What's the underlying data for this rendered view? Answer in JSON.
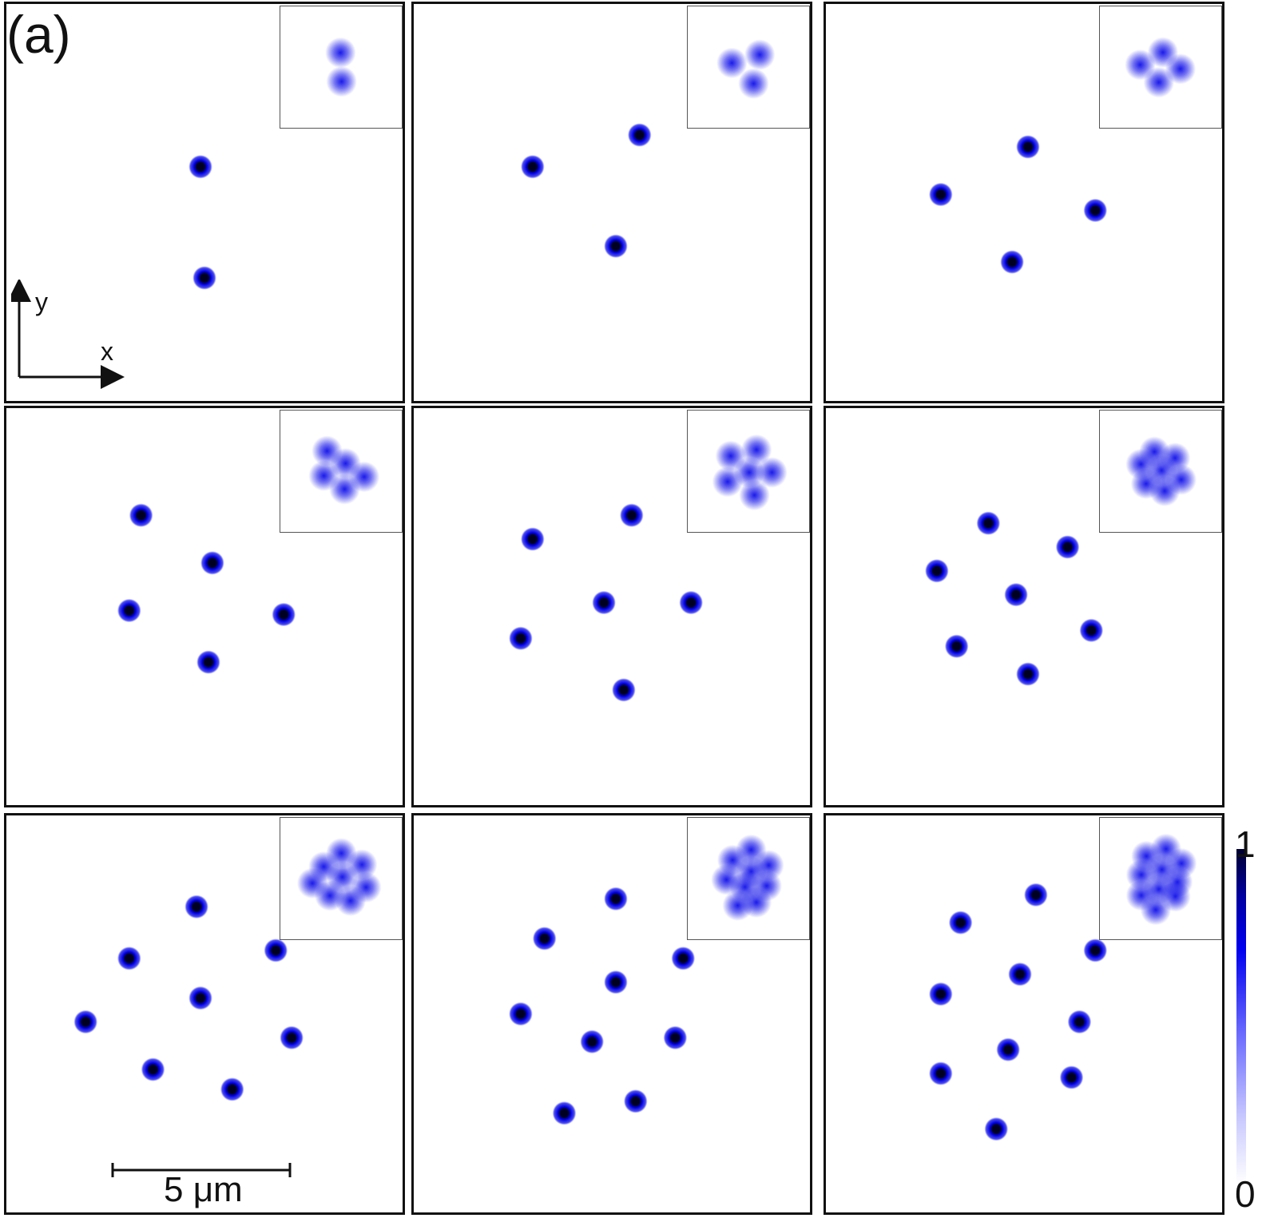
{
  "figure": {
    "panel_label": "(a)",
    "axis_y_label": "y",
    "axis_x_label": "x",
    "scale_bar_label": "5 μm",
    "colorbar": {
      "max_label": "1",
      "min_label": "0",
      "colors": [
        "#ffffff",
        "#c8c8ff",
        "#0000f0",
        "#000030"
      ]
    },
    "spot_color": "#0000e8",
    "spot_core_color": "#000022",
    "panels": [
      {
        "index": 1,
        "spots": [
          [
            0.49,
            0.41
          ],
          [
            0.5,
            0.69
          ]
        ]
      },
      {
        "index": 2,
        "spots": [
          [
            0.3,
            0.41
          ],
          [
            0.57,
            0.33
          ],
          [
            0.51,
            0.61
          ]
        ]
      },
      {
        "index": 3,
        "spots": [
          [
            0.51,
            0.36
          ],
          [
            0.29,
            0.48
          ],
          [
            0.68,
            0.52
          ],
          [
            0.47,
            0.65
          ]
        ]
      },
      {
        "index": 4,
        "spots": [
          [
            0.34,
            0.27
          ],
          [
            0.52,
            0.39
          ],
          [
            0.31,
            0.51
          ],
          [
            0.7,
            0.52
          ],
          [
            0.51,
            0.64
          ]
        ]
      },
      {
        "index": 5,
        "spots": [
          [
            0.3,
            0.33
          ],
          [
            0.55,
            0.27
          ],
          [
            0.48,
            0.49
          ],
          [
            0.7,
            0.49
          ],
          [
            0.27,
            0.58
          ],
          [
            0.53,
            0.71
          ]
        ]
      },
      {
        "index": 6,
        "spots": [
          [
            0.41,
            0.29
          ],
          [
            0.61,
            0.35
          ],
          [
            0.28,
            0.41
          ],
          [
            0.48,
            0.47
          ],
          [
            0.67,
            0.56
          ],
          [
            0.33,
            0.6
          ],
          [
            0.51,
            0.67
          ]
        ]
      },
      {
        "index": 7,
        "spots": [
          [
            0.48,
            0.23
          ],
          [
            0.31,
            0.36
          ],
          [
            0.68,
            0.34
          ],
          [
            0.49,
            0.46
          ],
          [
            0.2,
            0.52
          ],
          [
            0.72,
            0.56
          ],
          [
            0.37,
            0.64
          ],
          [
            0.57,
            0.69
          ]
        ]
      },
      {
        "index": 8,
        "spots": [
          [
            0.51,
            0.21
          ],
          [
            0.33,
            0.31
          ],
          [
            0.68,
            0.36
          ],
          [
            0.51,
            0.42
          ],
          [
            0.27,
            0.5
          ],
          [
            0.66,
            0.56
          ],
          [
            0.45,
            0.57
          ],
          [
            0.56,
            0.72
          ],
          [
            0.38,
            0.75
          ]
        ]
      },
      {
        "index": 9,
        "spots": [
          [
            0.53,
            0.2
          ],
          [
            0.34,
            0.27
          ],
          [
            0.68,
            0.34
          ],
          [
            0.49,
            0.4
          ],
          [
            0.29,
            0.45
          ],
          [
            0.64,
            0.52
          ],
          [
            0.46,
            0.59
          ],
          [
            0.29,
            0.65
          ],
          [
            0.62,
            0.66
          ],
          [
            0.43,
            0.79
          ]
        ]
      }
    ]
  }
}
